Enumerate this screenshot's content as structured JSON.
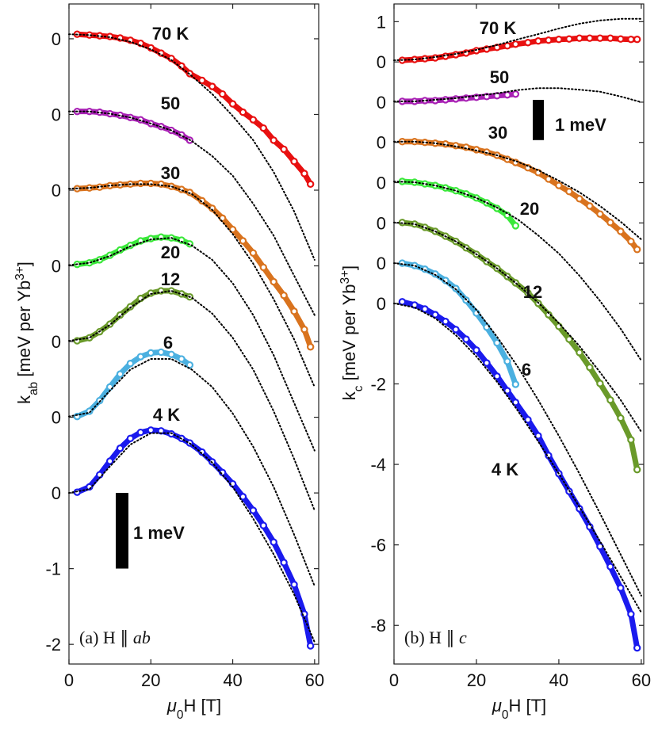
{
  "chart_data": [
    {
      "type": "scatter",
      "ylabel": [
        {
          "text": "k"
        },
        {
          "text": "ab",
          "shift": "sub"
        },
        {
          "text": " [meV per Yb"
        },
        {
          "text": "3+",
          "shift": "sup"
        },
        {
          "text": "]"
        }
      ],
      "xlabel": [
        {
          "text": "μ",
          "style": "italic"
        },
        {
          "text": "0",
          "shift": "sub"
        },
        {
          "text": "H [T]"
        }
      ],
      "annotation": [
        {
          "text": "(a) H ∥ "
        },
        {
          "text": "ab",
          "style": "italic"
        }
      ],
      "xlim": [
        0,
        61
      ],
      "xticks": [
        0,
        20,
        40,
        60
      ],
      "ylim": [
        -2.26,
        6.46
      ],
      "yticks": [
        -2,
        -1,
        0,
        {
          "value": 1,
          "label": "0"
        },
        {
          "value": 2,
          "label": "0"
        },
        {
          "value": 3,
          "label": "0"
        },
        {
          "value": 4,
          "label": "0"
        },
        {
          "value": 5,
          "label": "0"
        },
        {
          "value": 6,
          "label": "0"
        }
      ],
      "scale_bar": {
        "label": "1 meV",
        "value": 1
      },
      "x": [
        2,
        5,
        7.5,
        10,
        12.5,
        15,
        17.5,
        20,
        22.5,
        25,
        27.5,
        29.5,
        32.5,
        35,
        37.5,
        40,
        42.5,
        45,
        47.5,
        50,
        52.5,
        55,
        57.5,
        59
      ],
      "fit_x": [
        0,
        5,
        10,
        15,
        20,
        25,
        30,
        35,
        40,
        45,
        50,
        55,
        60
      ],
      "series": [
        {
          "name": "70 K",
          "color": "#e81010",
          "values": [
            6.06,
            6.05,
            6.04,
            6.03,
            6.01,
            5.98,
            5.94,
            5.88,
            5.81,
            5.74,
            5.64,
            5.54,
            5.45,
            5.37,
            5.27,
            5.14,
            5.03,
            4.93,
            4.82,
            4.66,
            4.54,
            4.38,
            4.22,
            4.08
          ],
          "fit": [
            6.06,
            6.05,
            6.02,
            5.96,
            5.86,
            5.72,
            5.51,
            5.27,
            4.98,
            4.66,
            4.24,
            3.72,
            3.08
          ]
        },
        {
          "name": "50",
          "color": "#a820b4",
          "values": [
            5.04,
            5.04,
            5.03,
            5.01,
            4.99,
            4.96,
            4.93,
            4.88,
            4.84,
            4.79,
            4.73,
            4.66,
            null,
            null,
            null,
            null,
            null,
            null,
            null,
            null,
            null,
            null,
            null,
            null
          ],
          "fit": [
            5.04,
            5.04,
            5.01,
            4.96,
            4.88,
            4.79,
            4.65,
            4.45,
            4.19,
            3.82,
            3.4,
            2.87,
            2.35
          ]
        },
        {
          "name": "30",
          "color": "#d9731e",
          "values": [
            4.02,
            4.03,
            4.04,
            4.06,
            4.07,
            4.08,
            4.09,
            4.09,
            4.08,
            4.05,
            4.01,
            3.97,
            3.86,
            3.76,
            3.63,
            3.48,
            3.33,
            3.17,
            2.98,
            2.79,
            2.61,
            2.4,
            2.16,
            1.93
          ],
          "fit": [
            4.02,
            4.03,
            4.06,
            4.08,
            4.08,
            4.05,
            3.95,
            3.74,
            3.42,
            3.03,
            2.56,
            2.03,
            1.4
          ]
        },
        {
          "name": "20",
          "color": "#3ae83a",
          "values": [
            3.02,
            3.04,
            3.08,
            3.14,
            3.21,
            3.27,
            3.33,
            3.36,
            3.38,
            3.37,
            3.34,
            3.29,
            null,
            null,
            null,
            null,
            null,
            null,
            null,
            null,
            null,
            null,
            null,
            null
          ],
          "fit": [
            3.01,
            3.04,
            3.13,
            3.26,
            3.35,
            3.37,
            3.27,
            3.08,
            2.77,
            2.35,
            1.82,
            1.19,
            0.56
          ]
        },
        {
          "name": "12",
          "color": "#6a9a2a",
          "values": [
            2.01,
            2.05,
            2.13,
            2.23,
            2.35,
            2.46,
            2.57,
            2.64,
            2.67,
            2.67,
            2.63,
            2.59,
            null,
            null,
            null,
            null,
            null,
            null,
            null,
            null,
            null,
            null,
            null,
            null
          ],
          "fit": [
            2.01,
            2.05,
            2.22,
            2.45,
            2.63,
            2.67,
            2.58,
            2.37,
            2.05,
            1.63,
            1.08,
            0.45,
            -0.23
          ]
        },
        {
          "name": "6",
          "color": "#4bb0e0",
          "values": [
            1.01,
            1.08,
            1.22,
            1.4,
            1.57,
            1.71,
            1.8,
            1.85,
            1.86,
            1.83,
            1.77,
            1.69,
            null,
            null,
            null,
            null,
            null,
            null,
            null,
            null,
            null,
            null,
            null,
            null
          ],
          "fit": [
            1.01,
            1.06,
            1.35,
            1.63,
            1.77,
            1.77,
            1.63,
            1.4,
            1.05,
            0.61,
            0.08,
            -0.55,
            -1.23
          ]
        },
        {
          "name": "4 K",
          "color": "#1a1aee",
          "values": [
            0.01,
            0.08,
            0.24,
            0.42,
            0.59,
            0.72,
            0.8,
            0.83,
            0.82,
            0.78,
            0.72,
            0.66,
            0.54,
            0.41,
            0.27,
            0.12,
            -0.05,
            -0.23,
            -0.43,
            -0.65,
            -0.92,
            -1.21,
            -1.6,
            -2.02
          ],
          "fit": [
            0,
            0.05,
            0.35,
            0.64,
            0.79,
            0.79,
            0.64,
            0.4,
            0.08,
            -0.34,
            -0.81,
            -1.34,
            -1.97
          ]
        }
      ]
    },
    {
      "type": "scatter",
      "ylabel": [
        {
          "text": "k"
        },
        {
          "text": "c",
          "shift": "sub"
        },
        {
          "text": " [meV per Yb"
        },
        {
          "text": "3+",
          "shift": "sup"
        },
        {
          "text": "]"
        }
      ],
      "xlabel": [
        {
          "text": "μ",
          "style": "italic"
        },
        {
          "text": "0",
          "shift": "sub"
        },
        {
          "text": "H [T]"
        }
      ],
      "annotation": [
        {
          "text": "(b) H ∥ "
        },
        {
          "text": "c",
          "style": "italic"
        }
      ],
      "xlim": [
        0,
        60.6
      ],
      "xticks": [
        0,
        20,
        40,
        60
      ],
      "ylim": [
        -8.96,
        7.44
      ],
      "yticks": [
        -8,
        -6,
        -4,
        -2,
        0,
        {
          "value": 1,
          "label": "0"
        },
        {
          "value": 2,
          "label": "0"
        },
        {
          "value": 3,
          "label": "0"
        },
        {
          "value": 4,
          "label": "0"
        },
        {
          "value": 5,
          "label": "0"
        },
        {
          "value": 6,
          "label": "0"
        },
        {
          "value": 7,
          "label": "1"
        }
      ],
      "scale_bar": {
        "label": "1 meV",
        "value": 1
      },
      "x": [
        2,
        5,
        7.5,
        10,
        12.5,
        15,
        17.5,
        20,
        22.5,
        25,
        27.5,
        29.5,
        32.5,
        35,
        37.5,
        40,
        42.5,
        45,
        47.5,
        50,
        52.5,
        55,
        57.5,
        59
      ],
      "fit_x": [
        0,
        5,
        10,
        15,
        20,
        25,
        30,
        35,
        40,
        45,
        50,
        55,
        60
      ],
      "series": [
        {
          "name": "70 K",
          "color": "#e81010",
          "values": [
            6.04,
            6.06,
            6.08,
            6.1,
            6.14,
            6.18,
            6.22,
            6.28,
            6.32,
            6.36,
            6.4,
            6.44,
            6.48,
            6.52,
            6.54,
            6.56,
            6.57,
            6.59,
            6.59,
            6.59,
            6.59,
            6.57,
            6.56,
            6.56
          ],
          "fit": [
            6.04,
            6.06,
            6.12,
            6.2,
            6.3,
            6.42,
            6.56,
            6.69,
            6.83,
            6.95,
            7.03,
            7.07,
            7.07
          ]
        },
        {
          "name": "50",
          "color": "#a820b4",
          "values": [
            5.02,
            5.02,
            5.04,
            5.04,
            5.06,
            5.08,
            5.1,
            5.12,
            5.14,
            5.16,
            5.18,
            5.2,
            null,
            null,
            null,
            null,
            null,
            null,
            null,
            null,
            null,
            null,
            null,
            null
          ],
          "fit": [
            5.02,
            5.02,
            5.06,
            5.1,
            5.16,
            5.22,
            5.3,
            5.35,
            5.35,
            5.31,
            5.26,
            5.14,
            5.0
          ]
        },
        {
          "name": "30",
          "color": "#d9731e",
          "values": [
            4.02,
            4.02,
            4.0,
            3.98,
            3.96,
            3.92,
            3.88,
            3.82,
            3.76,
            3.68,
            3.58,
            3.5,
            3.37,
            3.25,
            3.09,
            2.93,
            2.78,
            2.6,
            2.42,
            2.22,
            2.01,
            1.79,
            1.54,
            1.34
          ],
          "fit": [
            4.02,
            4.02,
            3.98,
            3.9,
            3.8,
            3.68,
            3.52,
            3.31,
            3.05,
            2.76,
            2.42,
            2.03,
            1.59
          ]
        },
        {
          "name": "20",
          "color": "#3ae83a",
          "values": [
            3.03,
            3.01,
            2.97,
            2.93,
            2.87,
            2.8,
            2.72,
            2.62,
            2.5,
            2.36,
            2.19,
            1.93,
            null,
            null,
            null,
            null,
            null,
            null,
            null,
            null,
            null,
            null,
            null,
            null
          ],
          "fit": [
            3.03,
            3.01,
            2.93,
            2.8,
            2.62,
            2.38,
            2.09,
            1.69,
            1.24,
            0.69,
            0.06,
            -0.63,
            -1.42
          ]
        },
        {
          "name": "12",
          "color": "#6a9a2a",
          "values": [
            2.01,
            1.97,
            1.89,
            1.79,
            1.67,
            1.54,
            1.38,
            1.22,
            1.04,
            0.87,
            0.67,
            0.51,
            0.26,
            0.0,
            -0.28,
            -0.57,
            -0.89,
            -1.22,
            -1.59,
            -1.99,
            -2.4,
            -2.85,
            -3.39,
            -4.13
          ],
          "fit": [
            2.01,
            1.97,
            1.79,
            1.54,
            1.22,
            0.87,
            0.47,
            0.02,
            -0.49,
            -1.06,
            -1.71,
            -2.4,
            -3.19
          ]
        },
        {
          "name": "6",
          "color": "#4bb0e0",
          "values": [
            1.0,
            0.94,
            0.85,
            0.73,
            0.57,
            0.37,
            0.08,
            -0.24,
            -0.59,
            -0.98,
            -1.44,
            -2.01,
            null,
            null,
            null,
            null,
            null,
            null,
            null,
            null,
            null,
            null,
            null,
            null
          ],
          "fit": [
            1.0,
            0.94,
            0.71,
            0.35,
            -0.16,
            -0.83,
            -1.57,
            -2.4,
            -3.29,
            -4.23,
            -5.22,
            -6.24,
            -7.26
          ]
        },
        {
          "name": "4 K",
          "color": "#1a1aee",
          "values": [
            0.04,
            -0.04,
            -0.14,
            -0.28,
            -0.45,
            -0.65,
            -0.89,
            -1.16,
            -1.48,
            -1.81,
            -2.17,
            -2.46,
            -2.89,
            -3.29,
            -3.78,
            -4.23,
            -4.67,
            -5.1,
            -5.55,
            -6.04,
            -6.54,
            -7.07,
            -7.72,
            -8.56
          ],
          "fit": [
            0,
            -0.1,
            -0.37,
            -0.79,
            -1.32,
            -1.95,
            -2.66,
            -3.43,
            -4.23,
            -5.06,
            -5.91,
            -6.79,
            -7.68
          ]
        }
      ]
    }
  ]
}
